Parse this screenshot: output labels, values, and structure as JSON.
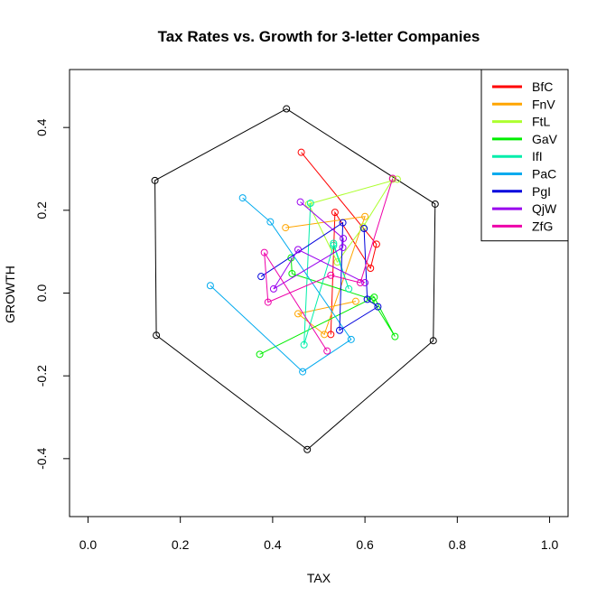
{
  "chart_data": {
    "type": "scatter",
    "title": "Tax Rates vs. Growth for 3-letter Companies",
    "xlabel": "TAX",
    "ylabel": "GROWTH",
    "xlim": [
      -0.04,
      1.04
    ],
    "ylim": [
      -0.54,
      0.54
    ],
    "xticks": [
      0.0,
      0.2,
      0.4,
      0.6,
      0.8,
      1.0
    ],
    "xtick_labels": [
      "0.0",
      "0.2",
      "0.4",
      "0.6",
      "0.8",
      "1.0"
    ],
    "yticks": [
      -0.4,
      -0.2,
      0.0,
      0.2,
      0.4
    ],
    "ytick_labels": [
      "-0.4",
      "-0.2",
      "0.0",
      "0.2",
      "0.4"
    ],
    "grid": false,
    "legend_position": "top-right",
    "hexagon": {
      "color": "#000000",
      "points": [
        {
          "x": 0.43,
          "y": 0.445
        },
        {
          "x": 0.752,
          "y": 0.215
        },
        {
          "x": 0.748,
          "y": -0.115
        },
        {
          "x": 0.475,
          "y": -0.378
        },
        {
          "x": 0.148,
          "y": -0.102
        },
        {
          "x": 0.145,
          "y": 0.272
        }
      ]
    },
    "series": [
      {
        "name": "BfC",
        "color": "#FF0000",
        "x": [
          0.462,
          0.625,
          0.612,
          0.535,
          0.526
        ],
        "y": [
          0.34,
          0.118,
          0.06,
          0.195,
          -0.1
        ]
      },
      {
        "name": "FnV",
        "color": "#FFA500",
        "x": [
          0.428,
          0.6,
          0.512,
          0.455,
          0.58
        ],
        "y": [
          0.158,
          0.185,
          -0.1,
          -0.05,
          -0.02
        ]
      },
      {
        "name": "FtL",
        "color": "#ADFF2F",
        "x": [
          0.67,
          0.478,
          0.54,
          0.596,
          0.66
        ],
        "y": [
          0.275,
          0.215,
          0.075,
          0.16,
          0.275
        ]
      },
      {
        "name": "GaV",
        "color": "#00EE00",
        "x": [
          0.372,
          0.62,
          0.665,
          0.615,
          0.442,
          0.44
        ],
        "y": [
          -0.148,
          -0.01,
          -0.105,
          -0.015,
          0.047,
          0.085
        ]
      },
      {
        "name": "IfI",
        "color": "#00EEAA",
        "x": [
          0.482,
          0.468,
          0.532,
          0.565,
          0.532
        ],
        "y": [
          0.217,
          -0.125,
          0.115,
          0.01,
          0.12
        ]
      },
      {
        "name": "PaC",
        "color": "#00AAEE",
        "x": [
          0.335,
          0.395,
          0.57,
          0.465,
          0.265
        ],
        "y": [
          0.23,
          0.172,
          -0.112,
          -0.19,
          0.018
        ]
      },
      {
        "name": "PgI",
        "color": "#0000DD",
        "x": [
          0.375,
          0.552,
          0.545,
          0.628,
          0.605,
          0.598
        ],
        "y": [
          0.04,
          0.17,
          -0.09,
          -0.033,
          -0.015,
          0.156
        ]
      },
      {
        "name": "QjW",
        "color": "#9900EE",
        "x": [
          0.46,
          0.553,
          0.552,
          0.402,
          0.455,
          0.6
        ],
        "y": [
          0.22,
          0.132,
          0.11,
          0.01,
          0.105,
          0.025
        ]
      },
      {
        "name": "ZfG",
        "color": "#EE00AA",
        "x": [
          0.66,
          0.59,
          0.526,
          0.39,
          0.382,
          0.518
        ],
        "y": [
          0.277,
          0.025,
          0.043,
          -0.022,
          0.098,
          -0.14
        ]
      }
    ]
  }
}
